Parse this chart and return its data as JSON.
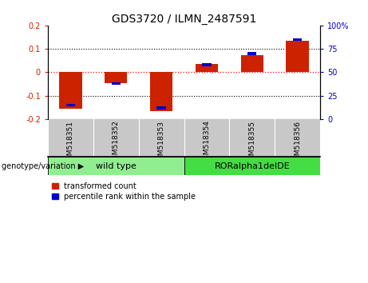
{
  "title": "GDS3720 / ILMN_2487591",
  "samples": [
    "GSM518351",
    "GSM518352",
    "GSM518353",
    "GSM518354",
    "GSM518355",
    "GSM518356"
  ],
  "red_values": [
    -0.155,
    -0.045,
    -0.165,
    0.035,
    0.075,
    0.135
  ],
  "blue_values": [
    15,
    38,
    12,
    58,
    70,
    85
  ],
  "ylim_left": [
    -0.2,
    0.2
  ],
  "ylim_right": [
    0,
    100
  ],
  "yticks_left": [
    -0.2,
    -0.1,
    0.0,
    0.1,
    0.2
  ],
  "yticks_right": [
    0,
    25,
    50,
    75,
    100
  ],
  "ytick_labels_right": [
    "0",
    "25",
    "50",
    "75",
    "100%"
  ],
  "hline_y": 0.0,
  "dotted_lines": [
    -0.1,
    0.1
  ],
  "groups": [
    {
      "label": "wild type",
      "indices": [
        0,
        1,
        2
      ],
      "color": "#90ee90"
    },
    {
      "label": "RORalpha1delDE",
      "indices": [
        3,
        4,
        5
      ],
      "color": "#44dd44"
    }
  ],
  "genotype_label": "genotype/variation",
  "legend_red": "transformed count",
  "legend_blue": "percentile rank within the sample",
  "red_bar_width": 0.5,
  "blue_bar_width": 0.2,
  "red_color": "#cc2200",
  "blue_color": "#0000cc",
  "title_fontsize": 10,
  "tick_fontsize": 7,
  "sample_label_fontsize": 6.5,
  "group_label_fontsize": 8,
  "legend_fontsize": 7,
  "genotype_fontsize": 7
}
